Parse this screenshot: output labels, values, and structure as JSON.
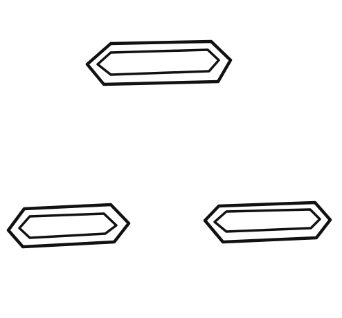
{
  "figure": {
    "background_color": "#ffffff",
    "stroke_color": "#111111",
    "shape_kind": "elongated-hexagon-double-outline",
    "shape_count": 3
  }
}
